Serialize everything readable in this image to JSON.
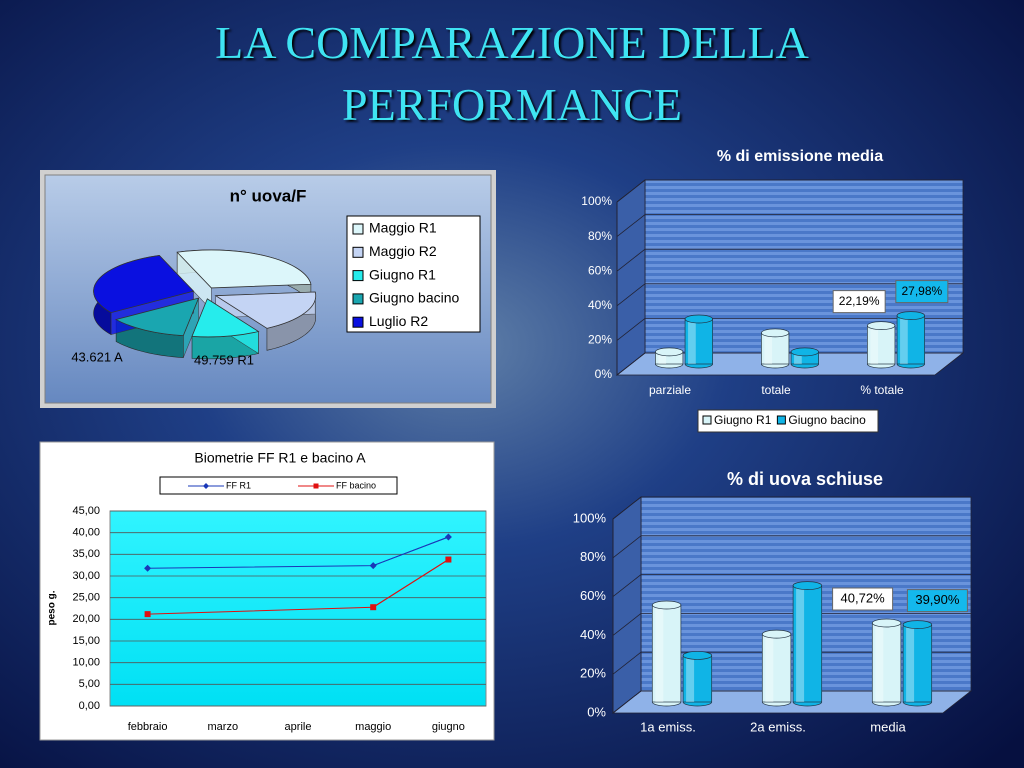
{
  "title": "LA COMPARAZIONE DELLA PERFORMANCE",
  "chart_data": [
    {
      "type": "pie",
      "title": "n° uova/F",
      "categories": [
        "Maggio R1",
        "Maggio R2",
        "Giugno R1",
        "Giugno bacino",
        "Luglio R2"
      ],
      "values": [
        29,
        18,
        11,
        13,
        29
      ],
      "colors": [
        "#dcf6fa",
        "#c4d4f4",
        "#26ecec",
        "#1aa6b0",
        "#0a10e0"
      ],
      "annotations": [
        "43.621 A",
        "49.759 R1"
      ],
      "legend": "right"
    },
    {
      "type": "bar",
      "title": "% di emissione media",
      "categories": [
        "parziale",
        "totale",
        "% totale"
      ],
      "series": [
        {
          "name": "Giugno R1",
          "color": "#d8f4f8",
          "values": [
            7,
            18,
            22.19
          ],
          "value_labels": [
            null,
            null,
            "22,19%"
          ]
        },
        {
          "name": "Giugno bacino",
          "color": "#10b4e6",
          "values": [
            26,
            7,
            27.98
          ],
          "value_labels": [
            null,
            null,
            "27,98%"
          ]
        }
      ],
      "ylim": [
        0,
        100
      ],
      "yticks": [
        {
          "value": 0,
          "label": "0%"
        },
        {
          "value": 20,
          "label": "20%"
        },
        {
          "value": 40,
          "label": "40%"
        },
        {
          "value": 60,
          "label": "60%"
        },
        {
          "value": 80,
          "label": "80%"
        },
        {
          "value": 100,
          "label": "100%"
        }
      ],
      "grid": true,
      "legend": "bottom"
    },
    {
      "type": "line",
      "title": "Biometrie FF R1 e bacino A",
      "y_label": "peso g.",
      "categories": [
        "febbraio",
        "marzo",
        "aprile",
        "maggio",
        "giugno"
      ],
      "series": [
        {
          "name": "FF R1",
          "color": "#1a38b8",
          "marker": "diamond",
          "values": [
            31.8,
            null,
            null,
            32.4,
            39
          ]
        },
        {
          "name": "FF bacino",
          "color": "#e01010",
          "marker": "square",
          "values": [
            21.2,
            null,
            null,
            22.8,
            33.8
          ]
        }
      ],
      "connect_gaps": true,
      "ylim": [
        0,
        45
      ],
      "yticks": [
        {
          "value": 0,
          "label": "0,00"
        },
        {
          "value": 5,
          "label": "5,00"
        },
        {
          "value": 10,
          "label": "10,00"
        },
        {
          "value": 15,
          "label": "15,00"
        },
        {
          "value": 20,
          "label": "20,00"
        },
        {
          "value": 25,
          "label": "25,00"
        },
        {
          "value": 30,
          "label": "30,00"
        },
        {
          "value": 35,
          "label": "35,00"
        },
        {
          "value": 40,
          "label": "40,00"
        },
        {
          "value": 45,
          "label": "45,00"
        }
      ],
      "grid": true,
      "legend": "top"
    },
    {
      "type": "bar",
      "title": "% di uova schiuse",
      "categories": [
        "1a emiss.",
        "2a emiss.",
        "media"
      ],
      "series": [
        {
          "color": "#d8f4f8",
          "values": [
            50,
            35,
            40.72
          ],
          "value_labels": [
            null,
            null,
            "40,72%"
          ]
        },
        {
          "color": "#10b4e6",
          "values": [
            24,
            60,
            39.9
          ],
          "value_labels": [
            null,
            null,
            "39,90%"
          ]
        }
      ],
      "ylim": [
        0,
        100
      ],
      "yticks": [
        {
          "value": 0,
          "label": "0%"
        },
        {
          "value": 20,
          "label": "20%"
        },
        {
          "value": 40,
          "label": "40%"
        },
        {
          "value": 60,
          "label": "60%"
        },
        {
          "value": 80,
          "label": "80%"
        },
        {
          "value": 100,
          "label": "100%"
        }
      ],
      "grid": true
    }
  ]
}
